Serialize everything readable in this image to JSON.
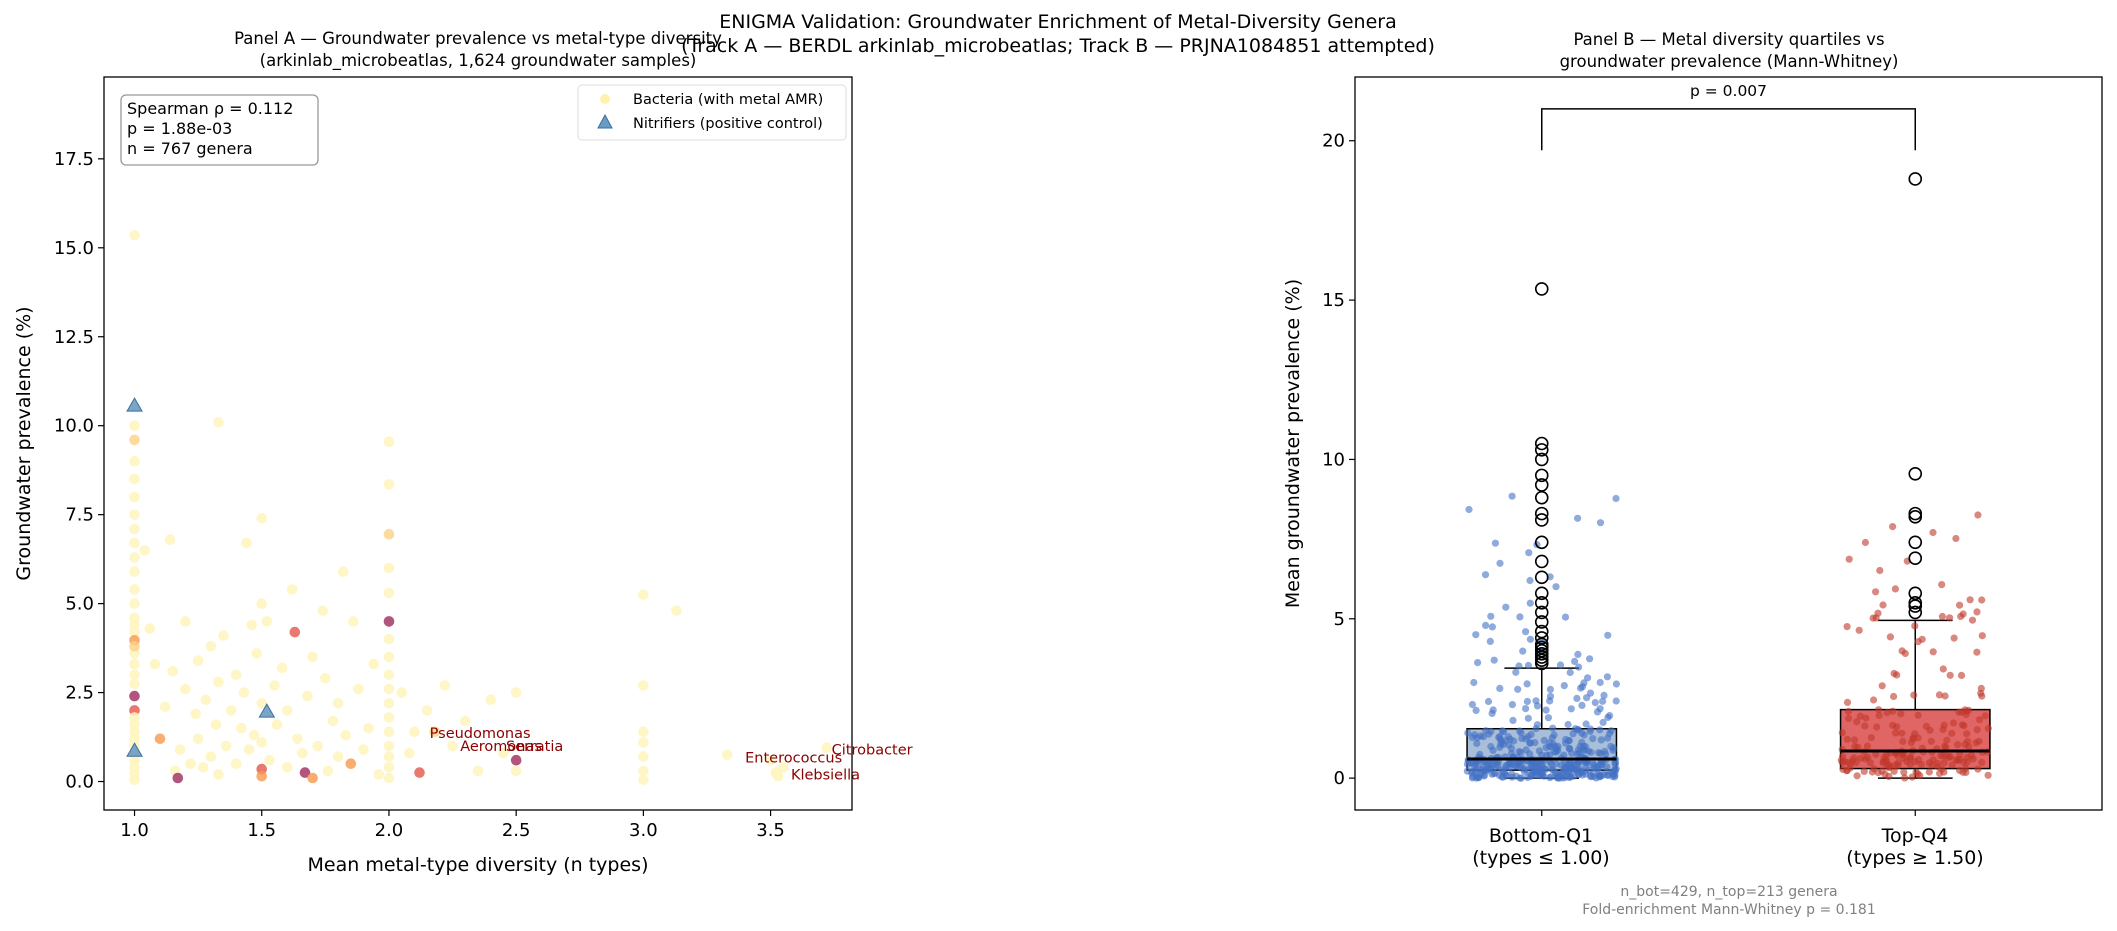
{
  "figure": {
    "suptitle_line1": "ENIGMA Validation: Groundwater Enrichment of Metal-Diversity Genera",
    "suptitle_line2": "(Track A — BERDL arkinlab_microbeatlas; Track B — PRJNA1084851 attempted)"
  },
  "chart_data": [
    {
      "type": "scatter",
      "title_line1": "Panel A — Groundwater prevalence vs metal-type diversity",
      "title_line2": "(arkinlab_microbeatlas, 1,624 groundwater samples)",
      "xlabel": "Mean metal-type diversity (n types)",
      "ylabel": "Groundwater prevalence (%)",
      "xlim": [
        0.88,
        3.82
      ],
      "ylim": [
        -0.8,
        19.8
      ],
      "xticks": [
        1.0,
        1.5,
        2.0,
        2.5,
        3.0,
        3.5
      ],
      "xtick_labels": [
        "1.0",
        "1.5",
        "2.0",
        "2.5",
        "3.0",
        "3.5"
      ],
      "yticks": [
        0.0,
        2.5,
        5.0,
        7.5,
        10.0,
        12.5,
        15.0,
        17.5
      ],
      "ytick_labels": [
        "0.0",
        "2.5",
        "5.0",
        "7.5",
        "10.0",
        "12.5",
        "15.0",
        "17.5"
      ],
      "stats_box": {
        "line1": "Spearman ρ = 0.112",
        "line2": "p = 1.88e-03",
        "line3": "n = 767 genera"
      },
      "legend_position": "top-right",
      "legend": [
        {
          "label": "Bacteria (with metal AMR)",
          "color": "#fff2b0",
          "marker": "circle"
        },
        {
          "label": "Nitrifiers (positive control)",
          "color": "#6a9bc3",
          "marker": "triangle"
        }
      ],
      "series": [
        {
          "name": "Bacteria (with metal AMR)",
          "color_scale": [
            "#fff4bd",
            "#fdd184",
            "#f8984e",
            "#e3584a",
            "#9e2a5b"
          ],
          "points": [
            [
              1.0,
              15.35,
              0
            ],
            [
              1.0,
              10.0,
              0
            ],
            [
              1.0,
              9.6,
              1
            ],
            [
              1.0,
              9.0,
              0
            ],
            [
              1.0,
              8.5,
              0
            ],
            [
              1.0,
              8.0,
              0
            ],
            [
              1.0,
              7.5,
              0
            ],
            [
              1.0,
              7.1,
              0
            ],
            [
              1.0,
              6.7,
              0
            ],
            [
              1.0,
              6.3,
              0
            ],
            [
              1.0,
              5.9,
              0
            ],
            [
              1.0,
              5.4,
              0
            ],
            [
              1.0,
              5.0,
              0
            ],
            [
              1.0,
              4.6,
              0
            ],
            [
              1.0,
              4.2,
              0
            ],
            [
              1.0,
              3.97,
              2
            ],
            [
              1.0,
              3.6,
              0
            ],
            [
              1.0,
              3.3,
              0
            ],
            [
              1.0,
              3.0,
              0
            ],
            [
              1.0,
              2.75,
              0
            ],
            [
              1.0,
              2.4,
              4
            ],
            [
              1.0,
              2.0,
              3
            ],
            [
              1.0,
              1.8,
              0
            ],
            [
              1.0,
              1.6,
              0
            ],
            [
              1.0,
              1.4,
              0
            ],
            [
              1.0,
              1.2,
              0
            ],
            [
              1.0,
              1.0,
              0
            ],
            [
              1.0,
              0.8,
              0
            ],
            [
              1.0,
              0.6,
              0
            ],
            [
              1.0,
              0.4,
              0
            ],
            [
              1.0,
              0.2,
              0
            ],
            [
              1.0,
              0.05,
              0
            ],
            [
              1.0,
              3.8,
              1
            ],
            [
              1.0,
              4.4,
              0
            ],
            [
              1.04,
              6.5,
              0
            ],
            [
              1.06,
              4.3,
              0
            ],
            [
              1.08,
              3.3,
              0
            ],
            [
              1.1,
              1.2,
              2
            ],
            [
              1.12,
              2.1,
              0
            ],
            [
              1.14,
              6.8,
              0
            ],
            [
              1.15,
              3.1,
              0
            ],
            [
              1.16,
              0.3,
              0
            ],
            [
              1.17,
              0.1,
              4
            ],
            [
              1.18,
              0.9,
              0
            ],
            [
              1.2,
              2.6,
              0
            ],
            [
              1.2,
              4.5,
              0
            ],
            [
              1.22,
              0.5,
              0
            ],
            [
              1.24,
              1.9,
              0
            ],
            [
              1.25,
              3.4,
              0
            ],
            [
              1.25,
              1.2,
              0
            ],
            [
              1.27,
              0.4,
              0
            ],
            [
              1.28,
              2.3,
              0
            ],
            [
              1.3,
              3.8,
              0
            ],
            [
              1.3,
              0.7,
              0
            ],
            [
              1.32,
              1.6,
              0
            ],
            [
              1.33,
              10.1,
              0
            ],
            [
              1.33,
              2.8,
              0
            ],
            [
              1.33,
              0.2,
              0
            ],
            [
              1.35,
              4.1,
              0
            ],
            [
              1.36,
              1.0,
              0
            ],
            [
              1.38,
              2.0,
              0
            ],
            [
              1.4,
              3.0,
              0
            ],
            [
              1.4,
              0.5,
              0
            ],
            [
              1.42,
              1.5,
              0
            ],
            [
              1.43,
              2.5,
              0
            ],
            [
              1.44,
              6.7,
              0
            ],
            [
              1.45,
              0.9,
              0
            ],
            [
              1.46,
              4.4,
              0
            ],
            [
              1.47,
              1.3,
              0
            ],
            [
              1.48,
              3.6,
              0
            ],
            [
              1.5,
              7.4,
              0
            ],
            [
              1.5,
              5.0,
              0
            ],
            [
              1.5,
              2.2,
              0
            ],
            [
              1.5,
              0.35,
              3
            ],
            [
              1.5,
              0.15,
              2
            ],
            [
              1.5,
              1.1,
              0
            ],
            [
              1.52,
              4.5,
              0
            ],
            [
              1.53,
              0.6,
              0
            ],
            [
              1.55,
              2.7,
              0
            ],
            [
              1.56,
              1.6,
              0
            ],
            [
              1.58,
              3.2,
              0
            ],
            [
              1.6,
              0.4,
              0
            ],
            [
              1.6,
              2.0,
              0
            ],
            [
              1.62,
              5.4,
              0
            ],
            [
              1.63,
              4.2,
              3
            ],
            [
              1.64,
              1.2,
              0
            ],
            [
              1.66,
              0.8,
              0
            ],
            [
              1.67,
              0.25,
              4
            ],
            [
              1.68,
              2.4,
              0
            ],
            [
              1.7,
              3.5,
              0
            ],
            [
              1.7,
              0.1,
              2
            ],
            [
              1.72,
              1.0,
              0
            ],
            [
              1.74,
              4.8,
              0
            ],
            [
              1.75,
              2.9,
              0
            ],
            [
              1.76,
              0.3,
              0
            ],
            [
              1.78,
              1.7,
              0
            ],
            [
              1.8,
              0.7,
              0
            ],
            [
              1.8,
              2.2,
              0
            ],
            [
              1.82,
              5.9,
              0
            ],
            [
              1.83,
              1.3,
              0
            ],
            [
              1.85,
              0.5,
              2
            ],
            [
              1.86,
              4.5,
              0
            ],
            [
              1.88,
              2.6,
              0
            ],
            [
              1.9,
              0.9,
              0
            ],
            [
              1.92,
              1.5,
              0
            ],
            [
              1.94,
              3.3,
              0
            ],
            [
              1.96,
              0.2,
              0
            ],
            [
              2.0,
              9.55,
              0
            ],
            [
              2.0,
              8.35,
              0
            ],
            [
              2.0,
              6.95,
              1
            ],
            [
              2.0,
              6.0,
              0
            ],
            [
              2.0,
              5.3,
              0
            ],
            [
              2.0,
              4.5,
              4
            ],
            [
              2.0,
              4.0,
              0
            ],
            [
              2.0,
              3.5,
              0
            ],
            [
              2.0,
              3.0,
              0
            ],
            [
              2.0,
              2.6,
              0
            ],
            [
              2.0,
              2.2,
              0
            ],
            [
              2.0,
              1.8,
              0
            ],
            [
              2.0,
              1.4,
              0
            ],
            [
              2.0,
              1.0,
              0
            ],
            [
              2.0,
              0.7,
              0
            ],
            [
              2.0,
              0.4,
              0
            ],
            [
              2.0,
              0.1,
              0
            ],
            [
              2.05,
              2.5,
              0
            ],
            [
              2.08,
              0.8,
              0
            ],
            [
              2.1,
              1.4,
              0
            ],
            [
              2.12,
              0.25,
              3
            ],
            [
              2.15,
              2.0,
              0
            ],
            [
              2.18,
              1.4,
              1
            ],
            [
              2.22,
              2.7,
              0
            ],
            [
              2.25,
              1.0,
              0
            ],
            [
              2.3,
              1.7,
              0
            ],
            [
              2.35,
              0.3,
              0
            ],
            [
              2.4,
              2.3,
              0
            ],
            [
              2.45,
              0.8,
              0
            ],
            [
              2.5,
              2.5,
              0
            ],
            [
              2.5,
              0.6,
              4
            ],
            [
              2.5,
              0.3,
              0
            ],
            [
              3.0,
              5.25,
              0
            ],
            [
              3.0,
              2.7,
              0
            ],
            [
              3.0,
              1.4,
              0
            ],
            [
              3.0,
              1.1,
              0
            ],
            [
              3.0,
              0.7,
              0
            ],
            [
              3.0,
              0.3,
              0
            ],
            [
              3.0,
              0.05,
              0
            ],
            [
              3.13,
              4.8,
              0
            ],
            [
              3.33,
              0.75,
              0
            ],
            [
              3.5,
              0.6,
              0
            ],
            [
              3.52,
              0.25,
              0
            ],
            [
              3.53,
              0.15,
              0
            ],
            [
              3.55,
              0.4,
              0
            ],
            [
              3.72,
              0.95,
              0
            ]
          ]
        },
        {
          "name": "Nitrifiers (positive control)",
          "points": [
            [
              1.0,
              10.55
            ],
            [
              1.0,
              0.85
            ],
            [
              1.52,
              1.95
            ]
          ]
        }
      ],
      "annotations": [
        {
          "text": "Pseudomonas",
          "x": 2.16,
          "y": 1.37
        },
        {
          "text": "Aeromonas",
          "x": 2.28,
          "y": 1.0
        },
        {
          "text": "Serratia",
          "x": 2.46,
          "y": 1.0
        },
        {
          "text": "Enterococcus",
          "x": 3.4,
          "y": 0.68
        },
        {
          "text": "Citrobacter",
          "x": 3.74,
          "y": 0.9
        },
        {
          "text": "Klebsiella",
          "x": 3.58,
          "y": 0.2
        }
      ]
    },
    {
      "type": "box",
      "title_line1": "Panel B — Metal diversity quartiles vs",
      "title_line2": "groundwater prevalence (Mann-Whitney)",
      "ylabel": "Mean groundwater prevalence (%)",
      "xlim": [
        0.5,
        2.5
      ],
      "ylim": [
        -1.0,
        22.0
      ],
      "yticks": [
        0,
        5,
        10,
        15,
        20
      ],
      "ytick_labels": [
        "0",
        "5",
        "10",
        "15",
        "20"
      ],
      "categories": [
        {
          "line1": "Bottom-Q1",
          "line2": "(types ≤ 1.00)"
        },
        {
          "line1": "Top-Q4",
          "line2": "(types ≥ 1.50)"
        }
      ],
      "boxes": [
        {
          "name": "Bottom-Q1",
          "box_color": "#a9bfd9",
          "point_color": "#4472c4",
          "q1": 0.25,
          "median": 0.6,
          "q3": 1.55,
          "whisker_low": 0.0,
          "whisker_high": 3.45,
          "outliers": [
            3.6,
            3.7,
            3.8,
            3.9,
            4.0,
            4.1,
            4.2,
            4.4,
            4.6,
            4.9,
            5.2,
            5.5,
            5.8,
            6.3,
            6.8,
            7.4,
            8.1,
            8.3,
            8.8,
            9.2,
            9.5,
            10.0,
            10.3,
            10.5,
            15.35
          ],
          "n_points": 429,
          "jitter_max": 9.0
        },
        {
          "name": "Top-Q4",
          "box_color": "#e06666",
          "point_color": "#c0392b",
          "q1": 0.3,
          "median": 0.85,
          "q3": 2.15,
          "whisker_low": 0.0,
          "whisker_high": 4.95,
          "outliers": [
            5.2,
            5.4,
            5.5,
            5.8,
            6.9,
            7.4,
            8.2,
            8.3,
            9.55,
            18.8
          ],
          "n_points": 213,
          "jitter_max": 8.5
        }
      ],
      "significance": {
        "label": "p = 0.007",
        "y": 21.0,
        "tick_bottom": 19.7
      },
      "footnote_line1": "n_bot=429, n_top=213 genera",
      "footnote_line2": "Fold-enrichment Mann-Whitney p = 0.181"
    }
  ]
}
